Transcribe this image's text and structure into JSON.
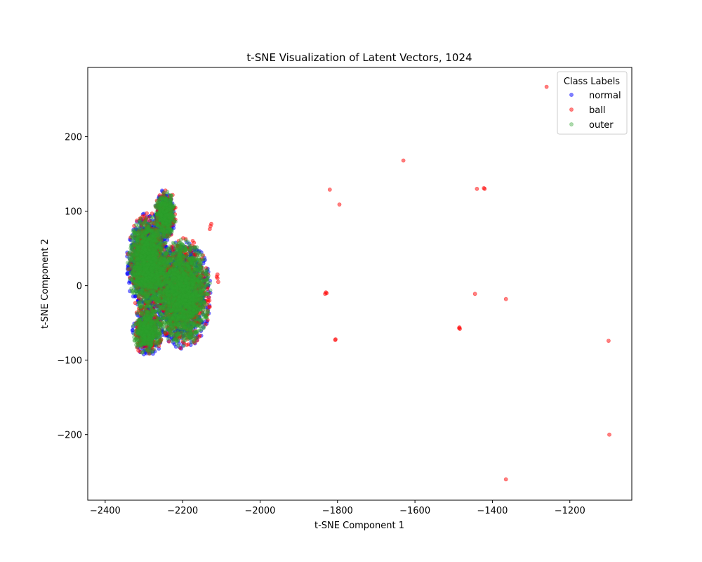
{
  "chart_data": {
    "type": "scatter",
    "title": "t-SNE Visualization of Latent Vectors, 1024",
    "xlabel": "t-SNE Component 1",
    "ylabel": "t-SNE Component 2",
    "xlim": [
      -2445,
      -1040
    ],
    "ylim": [
      -288,
      293
    ],
    "xticks": [
      -2400,
      -2200,
      -2000,
      -1800,
      -1600,
      -1400,
      -1200
    ],
    "xtick_labels": [
      "−2400",
      "−2200",
      "−2000",
      "−1800",
      "−1600",
      "−1400",
      "−1200"
    ],
    "yticks": [
      -200,
      -100,
      0,
      100,
      200
    ],
    "ytick_labels": [
      "−200",
      "−100",
      "0",
      "100",
      "200"
    ],
    "grid": false,
    "legend": {
      "title": "Class Labels",
      "position": "upper-right",
      "entries": [
        "normal",
        "ball",
        "outer"
      ]
    },
    "series": [
      {
        "name": "normal",
        "color": "#0000ff",
        "alpha": 0.5,
        "clusters": [
          {
            "cx": -2290,
            "cy": 30,
            "rx": 55,
            "ry": 70,
            "n": 900
          },
          {
            "cx": -2245,
            "cy": 95,
            "rx": 30,
            "ry": 35,
            "n": 250
          },
          {
            "cx": -2200,
            "cy": -10,
            "rx": 75,
            "ry": 75,
            "n": 1200
          },
          {
            "cx": -2290,
            "cy": -60,
            "rx": 40,
            "ry": 35,
            "n": 300
          }
        ],
        "points": []
      },
      {
        "name": "ball",
        "color": "#ff0000",
        "alpha": 0.5,
        "clusters": [
          {
            "cx": -2290,
            "cy": 30,
            "rx": 55,
            "ry": 70,
            "n": 500
          },
          {
            "cx": -2245,
            "cy": 95,
            "rx": 30,
            "ry": 35,
            "n": 150
          },
          {
            "cx": -2200,
            "cy": -10,
            "rx": 75,
            "ry": 75,
            "n": 700
          },
          {
            "cx": -2290,
            "cy": -60,
            "rx": 40,
            "ry": 35,
            "n": 200
          }
        ],
        "points": [
          [
            -2110,
            15
          ],
          [
            -2110,
            10
          ],
          [
            -2108,
            5
          ],
          [
            -2112,
            12
          ],
          [
            -2128,
            80
          ],
          [
            -2130,
            76
          ],
          [
            -2126,
            83
          ],
          [
            -1260,
            267
          ],
          [
            -1630,
            168
          ],
          [
            -1820,
            129
          ],
          [
            -1795,
            109
          ],
          [
            -1440,
            130
          ],
          [
            -1420,
            130
          ],
          [
            -1422,
            131
          ],
          [
            -1830,
            -9
          ],
          [
            -1828,
            -10
          ],
          [
            -1832,
            -11
          ],
          [
            -1445,
            -11
          ],
          [
            -1365,
            -18
          ],
          [
            -1485,
            -56
          ],
          [
            -1484,
            -58
          ],
          [
            -1486,
            -57
          ],
          [
            -1805,
            -72
          ],
          [
            -1806,
            -73
          ],
          [
            -1100,
            -74
          ],
          [
            -1098,
            -200
          ],
          [
            -1365,
            -260
          ]
        ]
      },
      {
        "name": "outer",
        "color": "#2ca02c",
        "alpha": 0.4,
        "clusters": [
          {
            "cx": -2290,
            "cy": 30,
            "rx": 52,
            "ry": 66,
            "n": 1500
          },
          {
            "cx": -2245,
            "cy": 95,
            "rx": 28,
            "ry": 32,
            "n": 400
          },
          {
            "cx": -2200,
            "cy": -10,
            "rx": 72,
            "ry": 72,
            "n": 2000
          },
          {
            "cx": -2290,
            "cy": -60,
            "rx": 38,
            "ry": 33,
            "n": 500
          }
        ],
        "points": []
      }
    ]
  }
}
